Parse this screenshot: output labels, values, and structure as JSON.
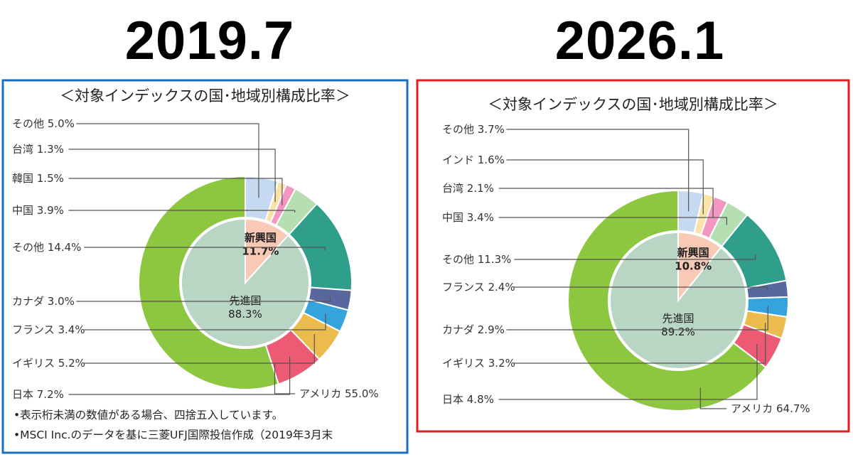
{
  "panels": [
    {
      "period": "2019.7",
      "period_color": "#1676c6",
      "border_color": "#1a6fc0",
      "chart_data": {
        "type": "pie",
        "title": "＜対象インデックスの国･地域別構成比率＞",
        "inner_ring": [
          {
            "name": "新興国",
            "value": 11.7,
            "label": "新興国\n11.7%",
            "color": "#f8c9b4"
          },
          {
            "name": "先進国",
            "value": 88.3,
            "label": "先進国\n88.3%",
            "color": "#b9d5c3"
          }
        ],
        "outer_ring": [
          {
            "name": "その他",
            "value": 5.0,
            "label": "その他 5.0%",
            "color": "#c5daf0"
          },
          {
            "name": "台湾",
            "value": 1.3,
            "label": "台湾 1.3%",
            "color": "#fbe3a8"
          },
          {
            "name": "韓国",
            "value": 1.5,
            "label": "韓国 1.5%",
            "color": "#f296c2"
          },
          {
            "name": "中国",
            "value": 3.9,
            "label": "中国 3.9%",
            "color": "#b6dfb1"
          },
          {
            "name": "その他",
            "value": 14.4,
            "label": "その他 14.4%",
            "color": "#2f9e8a"
          },
          {
            "name": "カナダ",
            "value": 3.0,
            "label": "カナダ 3.0%",
            "color": "#58679d"
          },
          {
            "name": "フランス",
            "value": 3.4,
            "label": "フランス 3.4%",
            "color": "#35a4dd"
          },
          {
            "name": "イギリス",
            "value": 5.2,
            "label": "イギリス 5.2%",
            "color": "#ecbb4d"
          },
          {
            "name": "日本",
            "value": 7.2,
            "label": "日本 7.2%",
            "color": "#ed5a73"
          },
          {
            "name": "アメリカ",
            "value": 55.0,
            "label": "アメリカ 55.0%",
            "color": "#8dc63f"
          }
        ]
      },
      "notes": [
        "•表示桁未満の数値がある場合、四捨五入しています。",
        "•MSCI Inc.のデータを基に三菱UFJ国際投信作成（2019年3月末"
      ]
    },
    {
      "period": "2026.1",
      "period_color": "#e8141c",
      "border_color": "#e31b23",
      "chart_data": {
        "type": "pie",
        "title": "＜対象インデックスの国･地域別構成比率＞",
        "inner_ring": [
          {
            "name": "新興国",
            "value": 10.8,
            "label": "新興国\n10.8%",
            "color": "#f8c9b4"
          },
          {
            "name": "先進国",
            "value": 89.2,
            "label": "先進国\n89.2%",
            "color": "#b9d5c3"
          }
        ],
        "outer_ring": [
          {
            "name": "その他",
            "value": 3.7,
            "label": "その他 3.7%",
            "color": "#c5daf0"
          },
          {
            "name": "インド",
            "value": 1.6,
            "label": "インド 1.6%",
            "color": "#fbe3a8"
          },
          {
            "name": "台湾",
            "value": 2.1,
            "label": "台湾 2.1%",
            "color": "#f296c2"
          },
          {
            "name": "中国",
            "value": 3.4,
            "label": "中国 3.4%",
            "color": "#b6dfb1"
          },
          {
            "name": "その他",
            "value": 11.3,
            "label": "その他 11.3%",
            "color": "#2f9e8a"
          },
          {
            "name": "フランス",
            "value": 2.4,
            "label": "フランス 2.4%",
            "color": "#58679d"
          },
          {
            "name": "カナダ",
            "value": 2.9,
            "label": "カナダ 2.9%",
            "color": "#35a4dd"
          },
          {
            "name": "イギリス",
            "value": 3.2,
            "label": "イギリス 3.2%",
            "color": "#ecbb4d"
          },
          {
            "name": "日本",
            "value": 4.8,
            "label": "日本 4.8%",
            "color": "#ed5a73"
          },
          {
            "name": "アメリカ",
            "value": 64.7,
            "label": "アメリカ 64.7%",
            "color": "#8dc63f"
          }
        ]
      },
      "notes": []
    }
  ]
}
